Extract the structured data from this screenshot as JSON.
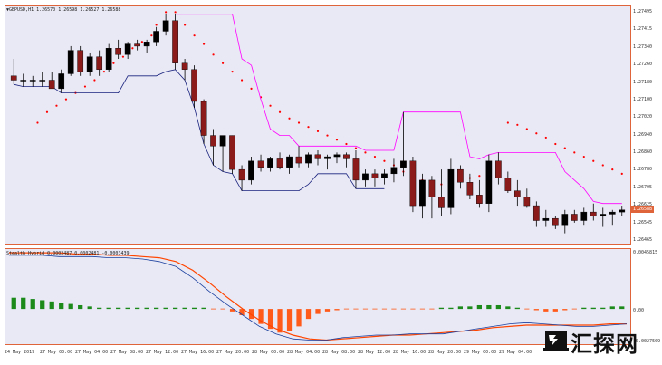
{
  "chart_header": {
    "symbol": "▼GBPUSD,H1",
    "ohlc": "1.26570 1.26598 1.26527 1.26588"
  },
  "indicator_header": {
    "name": "Stealth Hybrid",
    "values": "0.0002487 0.0002481 -0.0003439"
  },
  "current_price": "1.26588",
  "price_axis": [
    "1.27495",
    "1.27415",
    "1.27340",
    "1.27260",
    "1.27180",
    "1.27100",
    "1.27020",
    "1.26940",
    "1.26860",
    "1.26780",
    "1.26705",
    "1.26625",
    "1.26545",
    "1.26465"
  ],
  "indicator_axis": {
    "top": "0.0045815",
    "zero": "0.00",
    "bottom": "-0.0027509"
  },
  "time_axis": [
    "24 May 2019",
    "27 May 00:00",
    "27 May 04:00",
    "27 May 08:00",
    "27 May 12:00",
    "27 May 16:00",
    "27 May 20:00",
    "28 May 00:00",
    "28 May 04:00",
    "28 May 08:00",
    "28 May 12:00",
    "28 May 16:00",
    "28 May 20:00",
    "29 May 00:00",
    "29 May 04:00"
  ],
  "watermark": {
    "text": "汇探网"
  },
  "colors": {
    "bull": "#000000",
    "bear": "#8b1a1a",
    "sar": "#ff0000",
    "support": "#1a237e",
    "resistance": "#ff00ff",
    "hist_up": "#1b8a1b",
    "hist_down": "#ff5a1a",
    "line_orange": "#ff4500",
    "line_blue": "#1a3f9e",
    "tag_bg": "#e0643a"
  },
  "chart_data": [
    {
      "type": "candlestick",
      "symbol": "GBPUSD",
      "timeframe": "H1",
      "y_range": [
        1.2644,
        1.2753
      ],
      "ohlc": [
        [
          1.2722,
          1.273,
          1.2718,
          1.272
        ],
        [
          1.272,
          1.2723,
          1.2717,
          1.272
        ],
        [
          1.272,
          1.2722,
          1.2717,
          1.272
        ],
        [
          1.272,
          1.2724,
          1.2717,
          1.272
        ],
        [
          1.272,
          1.2724,
          1.2717,
          1.2716
        ],
        [
          1.2716,
          1.2725,
          1.2714,
          1.2723
        ],
        [
          1.2723,
          1.2736,
          1.2722,
          1.2734
        ],
        [
          1.2734,
          1.2736,
          1.2722,
          1.2724
        ],
        [
          1.2724,
          1.2733,
          1.2722,
          1.2731
        ],
        [
          1.2731,
          1.2734,
          1.2722,
          1.2725
        ],
        [
          1.2725,
          1.2737,
          1.2724,
          1.2735
        ],
        [
          1.2735,
          1.2739,
          1.273,
          1.2732
        ],
        [
          1.2732,
          1.2738,
          1.273,
          1.2737
        ],
        [
          1.2737,
          1.2739,
          1.2734,
          1.2736
        ],
        [
          1.2736,
          1.2739,
          1.2733,
          1.2738
        ],
        [
          1.2738,
          1.2745,
          1.2736,
          1.2743
        ],
        [
          1.2743,
          1.2751,
          1.2741,
          1.2748
        ],
        [
          1.2748,
          1.2751,
          1.2725,
          1.2728
        ],
        [
          1.2728,
          1.273,
          1.272,
          1.2725
        ],
        [
          1.2725,
          1.2727,
          1.2707,
          1.271
        ],
        [
          1.271,
          1.2711,
          1.269,
          1.2694
        ],
        [
          1.2694,
          1.2697,
          1.268,
          1.2689
        ],
        [
          1.2689,
          1.2693,
          1.2677,
          1.2694
        ],
        [
          1.2694,
          1.2694,
          1.2676,
          1.2678
        ],
        [
          1.2678,
          1.268,
          1.2668,
          1.2673
        ],
        [
          1.2673,
          1.2684,
          1.2671,
          1.2682
        ],
        [
          1.2682,
          1.2685,
          1.2677,
          1.2679
        ],
        [
          1.2679,
          1.2684,
          1.2677,
          1.2683
        ],
        [
          1.2683,
          1.2686,
          1.2678,
          1.2679
        ],
        [
          1.2679,
          1.2685,
          1.2676,
          1.2684
        ],
        [
          1.2684,
          1.2689,
          1.2679,
          1.2681
        ],
        [
          1.2681,
          1.2686,
          1.2679,
          1.2685
        ],
        [
          1.2685,
          1.2687,
          1.268,
          1.2683
        ],
        [
          1.2683,
          1.2685,
          1.2678,
          1.2684
        ],
        [
          1.2684,
          1.2686,
          1.2681,
          1.2685
        ],
        [
          1.2685,
          1.2686,
          1.2679,
          1.2683
        ],
        [
          1.2683,
          1.2687,
          1.2669,
          1.2673
        ],
        [
          1.2673,
          1.2678,
          1.267,
          1.2676
        ],
        [
          1.2676,
          1.2678,
          1.267,
          1.2674
        ],
        [
          1.2674,
          1.2678,
          1.2671,
          1.2676
        ],
        [
          1.2676,
          1.2683,
          1.2672,
          1.2679
        ],
        [
          1.2679,
          1.2705,
          1.2675,
          1.2682
        ],
        [
          1.2682,
          1.2684,
          1.2658,
          1.2661
        ],
        [
          1.2661,
          1.2676,
          1.2655,
          1.2673
        ],
        [
          1.2673,
          1.2675,
          1.2655,
          1.2665
        ],
        [
          1.2665,
          1.2678,
          1.2656,
          1.266
        ],
        [
          1.266,
          1.2683,
          1.2657,
          1.2678
        ],
        [
          1.2678,
          1.268,
          1.2669,
          1.2672
        ],
        [
          1.2672,
          1.2676,
          1.2664,
          1.2666
        ],
        [
          1.2666,
          1.2673,
          1.266,
          1.2662
        ],
        [
          1.2662,
          1.2685,
          1.2658,
          1.2682
        ],
        [
          1.2682,
          1.2686,
          1.2671,
          1.2674
        ],
        [
          1.2674,
          1.2677,
          1.2667,
          1.2668
        ],
        [
          1.2668,
          1.2673,
          1.2661,
          1.2665
        ],
        [
          1.2665,
          1.2669,
          1.266,
          1.2661
        ],
        [
          1.2661,
          1.2663,
          1.2651,
          1.2654
        ],
        [
          1.2654,
          1.2659,
          1.2651,
          1.2655
        ],
        [
          1.2655,
          1.2656,
          1.265,
          1.2652
        ],
        [
          1.2652,
          1.2659,
          1.2648,
          1.2657
        ],
        [
          1.2657,
          1.2659,
          1.2653,
          1.2654
        ],
        [
          1.2654,
          1.266,
          1.2652,
          1.2658
        ],
        [
          1.2658,
          1.2662,
          1.2654,
          1.2656
        ],
        [
          1.2656,
          1.266,
          1.2651,
          1.2657
        ],
        [
          1.2657,
          1.2659,
          1.2652,
          1.2658
        ],
        [
          1.2658,
          1.2661,
          1.2656,
          1.2659
        ]
      ],
      "sar": [
        [
          5,
          1.27
        ],
        [
          7,
          1.2705
        ],
        [
          9,
          1.2708
        ],
        [
          11,
          1.2711
        ],
        [
          13,
          1.2714
        ],
        [
          15,
          1.2717
        ],
        [
          17,
          1.272
        ],
        [
          19,
          1.2724
        ],
        [
          21,
          1.2728
        ],
        [
          23,
          1.2731
        ],
        [
          25,
          1.2735
        ],
        [
          27,
          1.2738
        ],
        [
          29,
          1.2741
        ],
        [
          30,
          1.2746
        ],
        [
          32,
          1.2752
        ],
        [
          34,
          1.2752
        ],
        [
          36,
          1.2746
        ],
        [
          38,
          1.2741
        ],
        [
          40,
          1.2737
        ],
        [
          42,
          1.2732
        ],
        [
          44,
          1.2728
        ],
        [
          46,
          1.2724
        ],
        [
          48,
          1.272
        ],
        [
          50,
          1.2716
        ],
        [
          52,
          1.2712
        ],
        [
          54,
          1.2708
        ],
        [
          56,
          1.2705
        ],
        [
          58,
          1.2702
        ],
        [
          60,
          1.27
        ],
        [
          62,
          1.2698
        ],
        [
          64,
          1.2696
        ],
        [
          66,
          1.2694
        ],
        [
          68,
          1.2692
        ],
        [
          70,
          1.269
        ],
        [
          72,
          1.2688
        ],
        [
          74,
          1.2686
        ],
        [
          76,
          1.2684
        ],
        [
          78,
          1.2682
        ],
        [
          80,
          1.268
        ],
        [
          82,
          1.2677
        ],
        [
          84,
          1.2675
        ],
        [
          86,
          1.2673
        ],
        [
          88,
          1.2671
        ],
        [
          90,
          1.2671
        ],
        [
          92,
          1.2672
        ],
        [
          94,
          1.2673
        ],
        [
          96,
          1.2674
        ],
        [
          98,
          1.2675
        ],
        [
          100,
          1.2676
        ],
        [
          102,
          1.2677
        ],
        [
          104,
          1.27
        ],
        [
          106,
          1.2699
        ],
        [
          108,
          1.2697
        ],
        [
          110,
          1.2695
        ],
        [
          112,
          1.2693
        ],
        [
          114,
          1.269
        ],
        [
          116,
          1.2688
        ],
        [
          118,
          1.2686
        ],
        [
          120,
          1.2684
        ],
        [
          122,
          1.2682
        ],
        [
          124,
          1.268
        ],
        [
          126,
          1.2678
        ],
        [
          128,
          1.2676
        ],
        [
          130,
          1.2674
        ],
        [
          132,
          1.2672
        ],
        [
          134,
          1.267
        ]
      ]
    },
    {
      "type": "histogram+line",
      "name": "Stealth Hybrid",
      "y_range": [
        -0.0027509,
        0.0045815
      ],
      "histogram": [
        0.0009,
        0.0009,
        0.0008,
        0.0007,
        0.0006,
        0.0005,
        0.0004,
        0.0003,
        0.0002,
        0.0001,
        0.0001,
        0.0001,
        0.0001,
        0.0001,
        0.0001,
        0.0001,
        0.0001,
        0.0001,
        0.0001,
        0.0001,
        0.0001,
        0.0,
        0.0,
        -0.0002,
        -0.0005,
        -0.0008,
        -0.0012,
        -0.0016,
        -0.0019,
        -0.0018,
        -0.0014,
        -0.0008,
        -0.0004,
        -0.0002,
        -0.0001,
        0.0,
        0.0,
        0.0,
        0.0,
        0.0,
        0.0,
        0.0,
        0.0,
        0.0,
        0.0,
        0.0001,
        0.0001,
        0.0002,
        0.0002,
        0.0003,
        0.0003,
        0.0003,
        0.0002,
        0.0001,
        0.0,
        -0.0001,
        -0.0002,
        -0.0002,
        -0.0001,
        0.0,
        0.0001,
        0.0001,
        0.0001,
        0.0002,
        0.0002
      ],
      "line_fast": [
        0.0043,
        0.0043,
        0.0043,
        0.0042,
        0.0042,
        0.0042,
        0.0041,
        0.0041,
        0.004,
        0.0038,
        0.0034,
        0.0025,
        0.0014,
        0.0004,
        -0.0005,
        -0.0014,
        -0.002,
        -0.0024,
        -0.0025,
        -0.0025,
        -0.0023,
        -0.0022,
        -0.0021,
        -0.0021,
        -0.002,
        -0.002,
        -0.002,
        -0.0018,
        -0.0016,
        -0.0014,
        -0.0012,
        -0.0011,
        -0.0012,
        -0.0013,
        -0.0014,
        -0.0014,
        -0.0013,
        -0.0012
      ],
      "line_slow": [
        0.0045,
        0.0045,
        0.0045,
        0.0045,
        0.0044,
        0.0044,
        0.0043,
        0.0043,
        0.0042,
        0.0041,
        0.0038,
        0.0031,
        0.0021,
        0.001,
        0.0,
        -0.0009,
        -0.0016,
        -0.0021,
        -0.0024,
        -0.0025,
        -0.0024,
        -0.0023,
        -0.0022,
        -0.0021,
        -0.0021,
        -0.002,
        -0.0019,
        -0.0018,
        -0.0017,
        -0.0015,
        -0.0014,
        -0.0013,
        -0.0013,
        -0.0013,
        -0.0013,
        -0.0013,
        -0.0012,
        -0.0012
      ]
    }
  ]
}
